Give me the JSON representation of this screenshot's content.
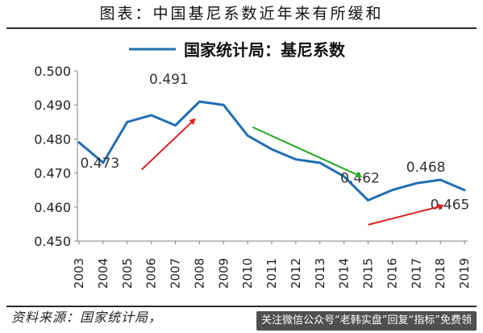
{
  "page": {
    "title": "图表：中国基尼系数近年来有所缓和",
    "source": "资料来源：国家统计局，",
    "promo_text": "关注微信公众号“老韩实盘”回复“指标”免费领"
  },
  "chart_data": {
    "type": "line",
    "title": "图表：中国基尼系数近年来有所缓和",
    "xlabel": "",
    "ylabel": "",
    "x": [
      "2003",
      "2004",
      "2005",
      "2006",
      "2007",
      "2008",
      "2009",
      "2010",
      "2011",
      "2012",
      "2013",
      "2014",
      "2015",
      "2016",
      "2017",
      "2018",
      "2019"
    ],
    "series": [
      {
        "name": "国家统计局：基尼系数",
        "values": [
          0.479,
          0.473,
          0.485,
          0.487,
          0.484,
          0.491,
          0.49,
          0.481,
          0.477,
          0.474,
          0.473,
          0.469,
          0.462,
          0.465,
          0.467,
          0.468,
          0.465
        ],
        "color": "#1f6fb4"
      }
    ],
    "ylim": [
      0.45,
      0.5
    ],
    "yticks": [
      "0.450",
      "0.460",
      "0.470",
      "0.480",
      "0.490",
      "0.500"
    ],
    "grid": false,
    "legend": {
      "placement": "top-center",
      "label": "国家统计局：基尼系数"
    },
    "annotations": [
      {
        "label": "0.473",
        "year": "2004",
        "value": 0.473
      },
      {
        "label": "0.491",
        "year": "2008",
        "value": 0.491
      },
      {
        "label": "0.462",
        "year": "2015",
        "value": 0.462
      },
      {
        "label": "0.468",
        "year": "2018",
        "value": 0.468
      },
      {
        "label": "0.465",
        "year": "2019",
        "value": 0.465
      }
    ],
    "arrows": [
      {
        "color": "#e02020",
        "from": [
          "2005.6",
          0.471
        ],
        "to": [
          "2007.8",
          0.4858
        ]
      },
      {
        "color": "#22aa22",
        "from": [
          "2010.2",
          0.4835
        ],
        "to": [
          "2014.7",
          0.469
        ]
      },
      {
        "color": "#e02020",
        "from": [
          "2015.0",
          0.4548
        ],
        "to": [
          "2018.1",
          0.4604
        ]
      }
    ]
  }
}
